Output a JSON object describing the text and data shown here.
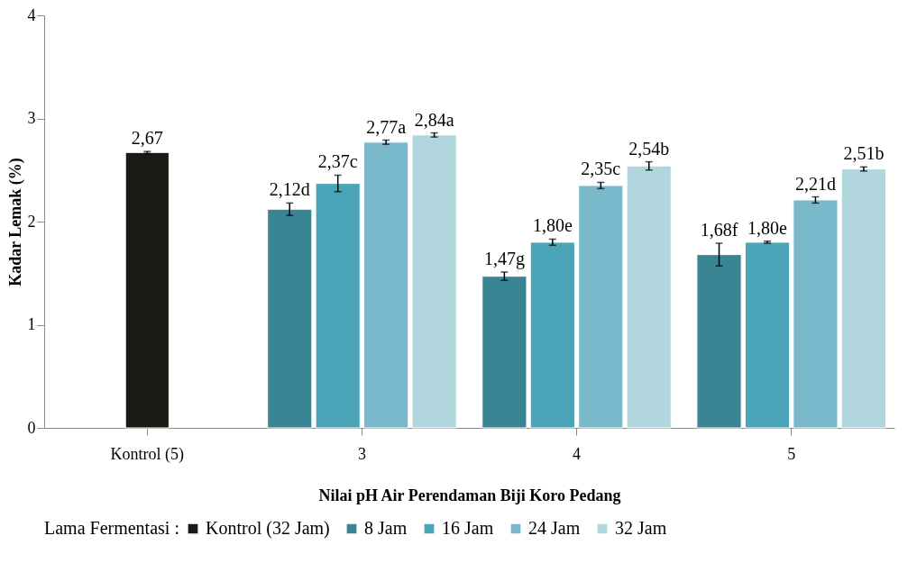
{
  "chart_data": {
    "type": "bar",
    "xlabel": "Nilai pH Air Perendaman Biji Koro Pedang",
    "ylabel": "Kadar Lemak (%)",
    "legend_title": "Lama Fermentasi :",
    "categories": [
      "Kontrol (5)",
      "3",
      "4",
      "5"
    ],
    "series": [
      {
        "name": "Kontrol (32 Jam)",
        "color": "#1a1a14",
        "values": [
          2.67,
          null,
          null,
          null
        ],
        "errors": [
          0.01,
          null,
          null,
          null
        ],
        "value_labels": [
          "2,67",
          null,
          null,
          null
        ]
      },
      {
        "name": "8 Jam",
        "color": "#3a8593",
        "values": [
          null,
          2.12,
          1.47,
          1.68
        ],
        "errors": [
          null,
          0.06,
          0.04,
          0.11
        ],
        "value_labels": [
          null,
          "2,12d",
          "1,47g",
          "1,68f"
        ]
      },
      {
        "name": "16 Jam",
        "color": "#4aa5b8",
        "values": [
          null,
          2.37,
          1.8,
          1.8
        ],
        "errors": [
          null,
          0.08,
          0.03,
          0.01
        ],
        "value_labels": [
          null,
          "2,37c",
          "1,80e",
          "1,80e"
        ]
      },
      {
        "name": "24 Jam",
        "color": "#7ab8cc",
        "values": [
          null,
          2.77,
          2.35,
          2.21
        ],
        "errors": [
          null,
          0.02,
          0.03,
          0.03
        ],
        "value_labels": [
          null,
          "2,77a",
          "2,35c",
          "2,21d"
        ]
      },
      {
        "name": "32 Jam",
        "color": "#b2d6de",
        "values": [
          null,
          2.84,
          2.54,
          2.51
        ],
        "errors": [
          null,
          0.02,
          0.04,
          0.02
        ],
        "value_labels": [
          null,
          "2,84a",
          "2,54b",
          "2,51b"
        ]
      }
    ],
    "ylim": [
      0,
      4
    ],
    "yticks": [
      0,
      1,
      2,
      3,
      4
    ],
    "grid": false,
    "legend": "bottom"
  }
}
